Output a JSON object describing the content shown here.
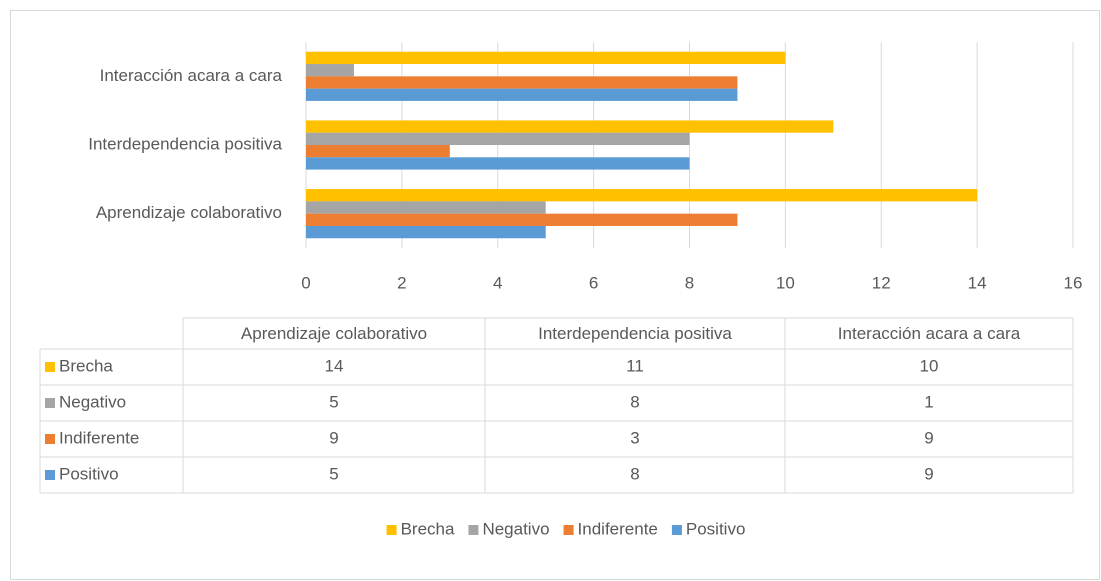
{
  "chart_data": {
    "type": "bar",
    "orientation": "horizontal",
    "categories": [
      "Aprendizaje colaborativo",
      "Interdependencia positiva",
      "Interacción acara a cara"
    ],
    "series": [
      {
        "name": "Brecha",
        "color": "#ffc000",
        "values": [
          14,
          11,
          10
        ]
      },
      {
        "name": "Negativo",
        "color": "#a5a5a5",
        "values": [
          5,
          8,
          1
        ]
      },
      {
        "name": "Indiferente",
        "color": "#ed7d31",
        "values": [
          9,
          3,
          9
        ]
      },
      {
        "name": "Positivo",
        "color": "#5b9bd5",
        "values": [
          5,
          8,
          9
        ]
      }
    ],
    "xlim": [
      0,
      16
    ],
    "xticks": [
      0,
      2,
      4,
      6,
      8,
      10,
      12,
      14,
      16
    ],
    "grid": true,
    "data_table": true,
    "legend": "bottom"
  }
}
